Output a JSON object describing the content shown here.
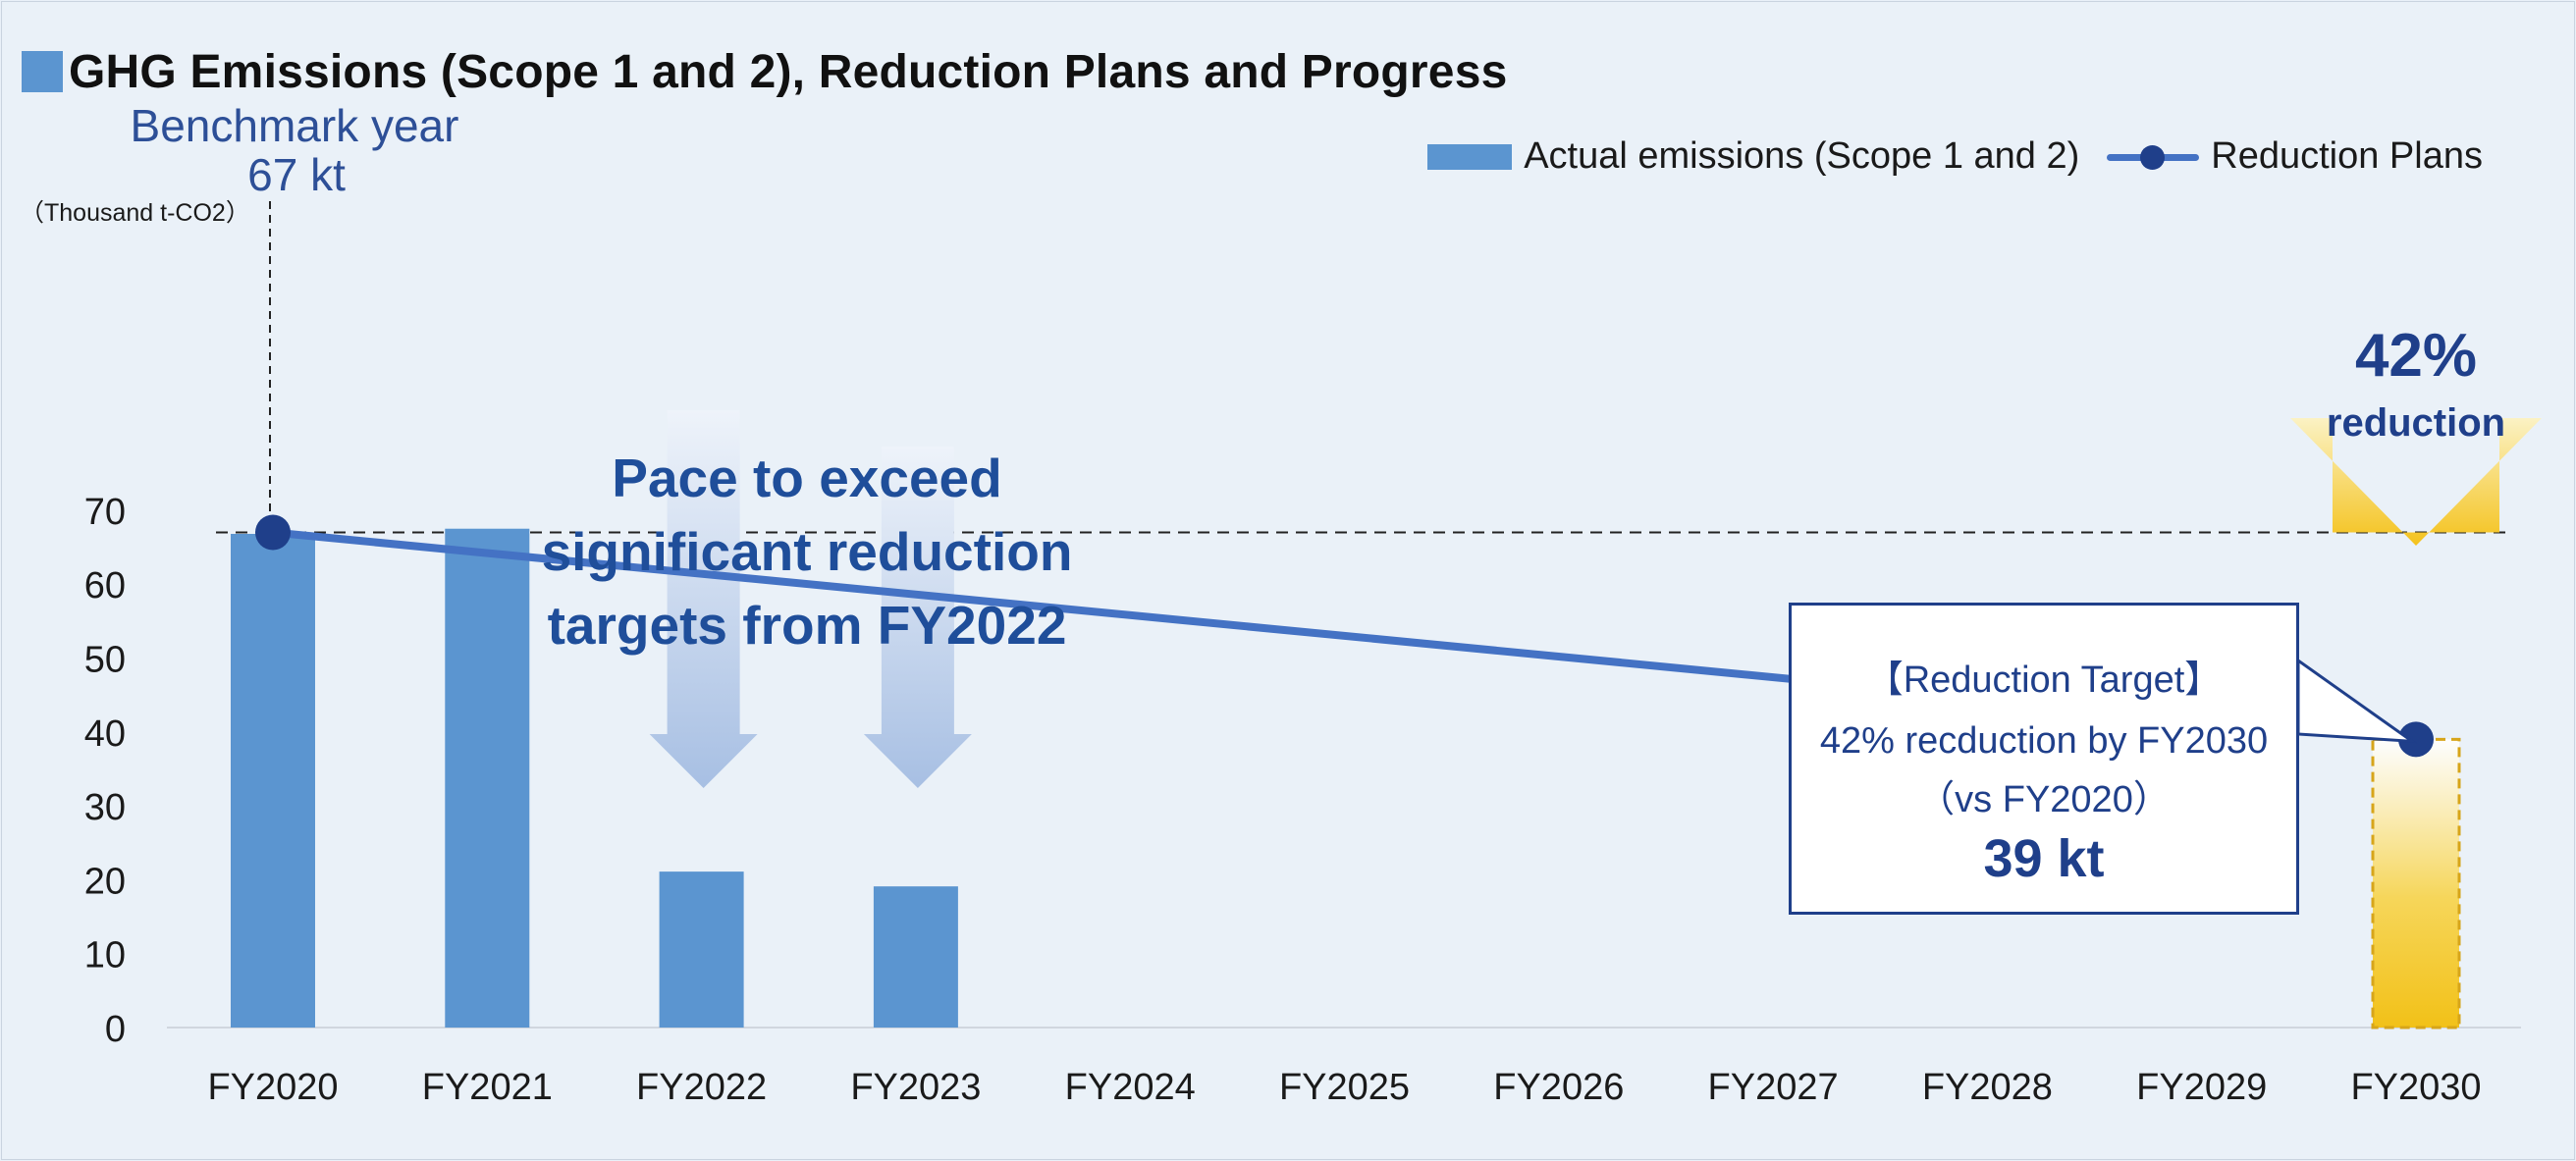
{
  "title": "GHG Emissions (Scope 1 and 2), Reduction Plans and Progress",
  "colors": {
    "bar": "#5b95d0",
    "line": "#4472c4",
    "marker": "#1f3f8a",
    "text_blue": "#1f4e9a",
    "gold": "#f5c518",
    "background": "#eaf1f8"
  },
  "legend": {
    "actual": "Actual emissions (Scope 1 and 2)",
    "plans": "Reduction Plans"
  },
  "annotations": {
    "benchmark_line1": "Benchmark year",
    "benchmark_line2": "67 kt",
    "pace_lines": [
      "Pace to exceed",
      "significant reduction",
      "targets from FY2022"
    ],
    "reduction_pct": "42%",
    "reduction_word": "reduction",
    "target_heading": "【Reduction Target】",
    "target_line": "42% recduction by FY2030",
    "target_vs": "（vs FY2020）",
    "target_value": "39 kt"
  },
  "chart_data": {
    "type": "bar",
    "ylabel": "（Thousand t-CO2）",
    "ylim": [
      0,
      70
    ],
    "yticks": [
      0,
      10,
      20,
      30,
      40,
      50,
      60,
      70
    ],
    "categories": [
      "FY2020",
      "FY2021",
      "FY2022",
      "FY2023",
      "FY2024",
      "FY2025",
      "FY2026",
      "FY2027",
      "FY2028",
      "FY2029",
      "FY2030"
    ],
    "series": [
      {
        "name": "Actual emissions (Scope 1 and 2)",
        "type": "bar",
        "values": [
          66.8,
          67.5,
          21.1,
          19.1,
          null,
          null,
          null,
          null,
          null,
          null,
          null
        ]
      },
      {
        "name": "Reduction Plans",
        "type": "line",
        "points": [
          {
            "x": "FY2020",
            "y": 67
          },
          {
            "x": "FY2030",
            "y": 39
          }
        ]
      }
    ],
    "benchmark_value": 67,
    "target_value": 39,
    "grid": false,
    "legend_position": "top-right"
  }
}
